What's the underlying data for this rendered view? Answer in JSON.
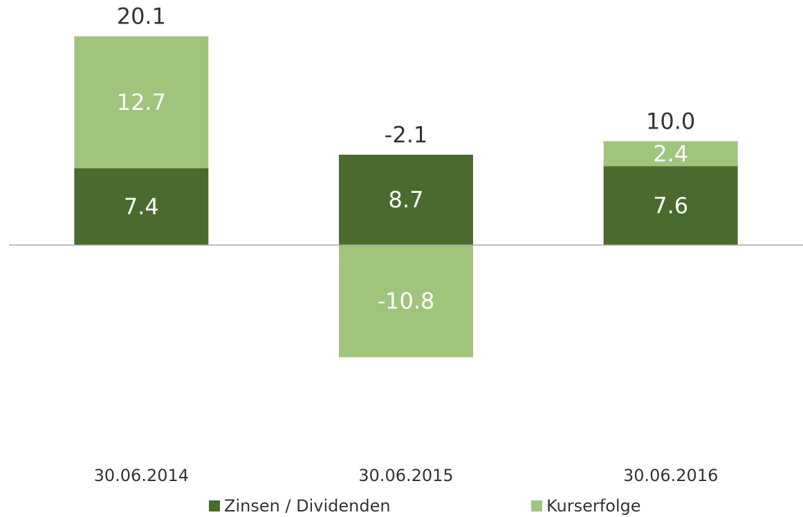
{
  "chart_data": {
    "type": "stacked_bar",
    "categories": [
      "30.06.2014",
      "30.06.2015",
      "30.06.2016"
    ],
    "series": [
      {
        "name": "Zinsen / Dividenden",
        "color": "#4a6b2d",
        "values": [
          7.4,
          8.7,
          7.6
        ]
      },
      {
        "name": "Kurserfolge",
        "color": "#a0c47c",
        "values": [
          12.7,
          -10.8,
          2.4
        ]
      }
    ],
    "totals": [
      20.1,
      -2.1,
      10
    ],
    "total_labels": [
      "20.1",
      "-2.1",
      "10.0"
    ],
    "ylim": [
      -20,
      22
    ],
    "legend": "bottom"
  }
}
